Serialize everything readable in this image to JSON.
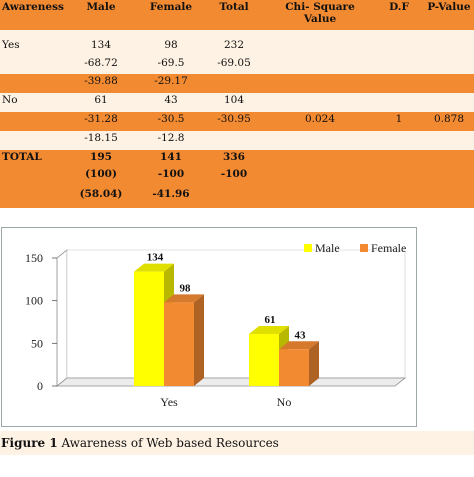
{
  "table": {
    "headers": [
      "Awareness",
      "Male",
      "Female",
      "Total",
      "Chi- Square Value",
      "D.F",
      "P-Value"
    ],
    "rows": [
      {
        "style": "lt",
        "cells": [
          "",
          "",
          "",
          "",
          "",
          "",
          ""
        ]
      },
      {
        "style": "lt",
        "cells": [
          "Yes",
          "134",
          "98",
          "232",
          "",
          "",
          ""
        ]
      },
      {
        "style": "lt",
        "cells": [
          "",
          "-68.72",
          "-69.5",
          "-69.05",
          "",
          "",
          ""
        ]
      },
      {
        "style": "or",
        "cells": [
          "",
          "-39.88",
          "-29.17",
          "",
          "",
          "",
          ""
        ]
      },
      {
        "style": "lt",
        "cells": [
          "No",
          "61",
          "43",
          "104",
          "",
          "",
          ""
        ]
      },
      {
        "style": "or",
        "cells": [
          "",
          "-31.28",
          "-30.5",
          "-30.95",
          "0.024",
          "1",
          "0.878"
        ]
      },
      {
        "style": "lt",
        "cells": [
          "",
          "-18.15",
          "-12.8",
          "",
          "",
          "",
          ""
        ]
      },
      {
        "style": "or-bold",
        "cells": [
          "TOTAL",
          "195",
          "141",
          "336",
          "",
          "",
          ""
        ]
      },
      {
        "style": "or-bold",
        "cells": [
          "",
          "(100)",
          "-100",
          "-100",
          "",
          "",
          ""
        ]
      },
      {
        "style": "or-bold",
        "cells": [
          "",
          "(58.04)",
          "-41.96",
          "",
          "",
          "",
          ""
        ]
      }
    ]
  },
  "chart_data": {
    "type": "bar",
    "categories": [
      "Yes",
      "No"
    ],
    "series": [
      {
        "name": "Male",
        "values": [
          134,
          61
        ],
        "color": "#ffff00"
      },
      {
        "name": "Female",
        "values": [
          98,
          43
        ],
        "color": "#f28a32"
      }
    ],
    "ylim": [
      0,
      150
    ],
    "yticks": [
      "0",
      "50",
      "100",
      "150"
    ],
    "data_labels": true,
    "legend_position": "top-right",
    "grid": false,
    "style": "3d"
  },
  "caption": {
    "label": "Figure 1",
    "text": " Awareness of Web based Resources"
  }
}
